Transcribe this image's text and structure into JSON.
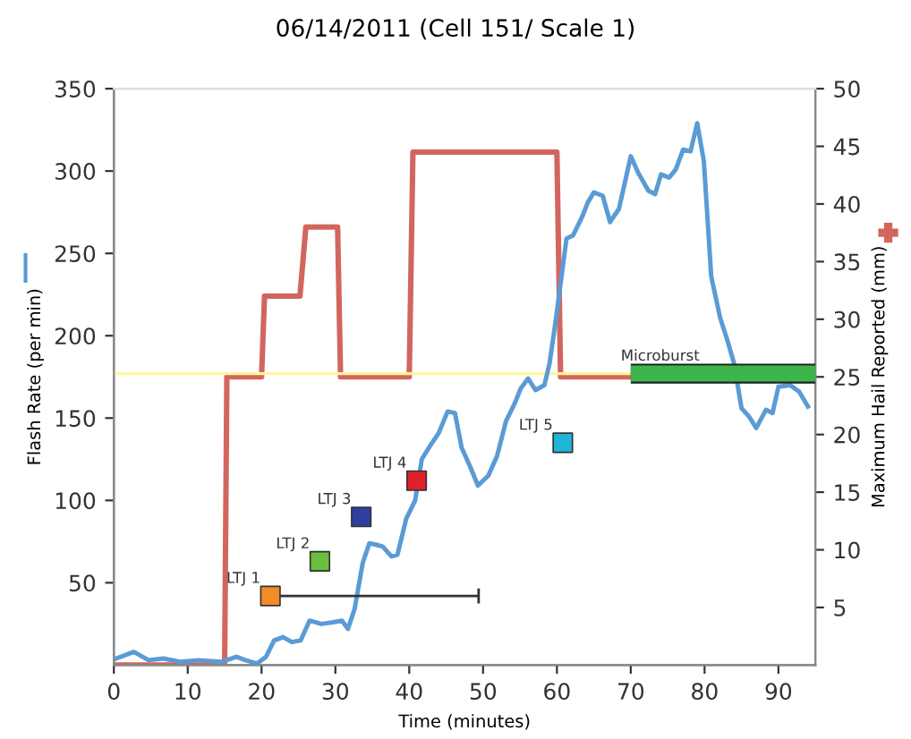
{
  "chart_data": {
    "type": "line",
    "title": "06/14/2011 (Cell 151/ Scale 1)",
    "xlabel": "Time (minutes)",
    "ylabel": "Flash Rate (per min)",
    "y2label": "Maximum Hail Reported (mm)",
    "xlim": [
      0,
      95
    ],
    "xticks": [
      0,
      10,
      20,
      30,
      40,
      50,
      60,
      70,
      80,
      90
    ],
    "ylim": [
      0,
      350
    ],
    "yticks": [
      50,
      100,
      150,
      200,
      250,
      300,
      350
    ],
    "y2lim": [
      0,
      50
    ],
    "y2ticks": [
      5,
      10,
      15,
      20,
      25,
      30,
      35,
      40,
      45,
      50
    ],
    "grid": false,
    "legend": false,
    "ref_lines": [
      {
        "axis": "y",
        "value": 177,
        "label": null,
        "color": "#fff59d"
      }
    ],
    "series": [
      {
        "color": "#5b9bd5",
        "x": [
          0.3,
          2.7,
          4.7,
          6.7,
          9,
          11.4,
          14.6,
          16.6,
          17.8,
          19.4,
          20.6,
          21.7,
          22.9,
          24.1,
          25.3,
          26.5,
          28.1,
          29.7,
          30.9,
          31.7,
          32.6,
          33.7,
          34.6,
          35.6,
          36.4,
          37.6,
          38.4,
          39.6,
          40.8,
          41.7,
          42.8,
          44,
          45.2,
          46.2,
          47.1,
          48.3,
          49.3,
          50.7,
          51.9,
          53.1,
          54.3,
          55.1,
          56.1,
          57.1,
          58.3,
          59,
          59.8,
          61.3,
          62.2,
          63.4,
          64.2,
          65,
          66.2,
          67.2,
          68.4,
          70,
          71,
          72.4,
          73.3,
          74.1,
          75.2,
          76.1,
          77.1,
          78.1,
          79,
          79.9,
          80.9,
          82.1,
          83.1,
          84,
          85,
          86,
          87,
          88.3,
          89.2,
          90,
          91.6,
          92.8,
          94
        ],
        "values": [
          4,
          8,
          3,
          4,
          2,
          3,
          2,
          5,
          3,
          1,
          5,
          15,
          17,
          14,
          15,
          27,
          25,
          26,
          27,
          22,
          34,
          62,
          74,
          73,
          72,
          66,
          67,
          89,
          100,
          125,
          133,
          141,
          154,
          153,
          132,
          120,
          109,
          115,
          127,
          148,
          159,
          168,
          174,
          167,
          170,
          183,
          208,
          259,
          261,
          272,
          281,
          287,
          285,
          269,
          277,
          309,
          299,
          288,
          286,
          298,
          296,
          301,
          313,
          312,
          329,
          306,
          236,
          211,
          197,
          183,
          156,
          151,
          144,
          155,
          153,
          169,
          170,
          166,
          157
        ]
      },
      {
        "axis": "y2",
        "color": "#d2665e",
        "x": [
          0,
          15,
          15.3,
          20,
          20.4,
          25.2,
          26,
          30.3,
          30.7,
          40,
          40.5,
          60,
          60.5,
          70
        ],
        "values": [
          0,
          0,
          25,
          25,
          32,
          32,
          38,
          38,
          25,
          25,
          44.5,
          44.5,
          25,
          25
        ]
      },
      {
        "color": "#3cb54a",
        "x": [
          70,
          95
        ],
        "values": [
          177,
          177
        ]
      },
      {
        "type": "scatter",
        "marker": "square",
        "x": [
          21.2,
          27.9,
          33.5,
          41,
          60.8
        ],
        "values": [
          42,
          63,
          90,
          112,
          135
        ],
        "colors": [
          "#f28c28",
          "#6abf40",
          "#2e3f9e",
          "#e0202a",
          "#1fb5d6"
        ],
        "xerrors": [
          [
            21.2,
            49.4
          ],
          null,
          null,
          null,
          null
        ]
      }
    ],
    "annotations": [
      {
        "text": "LTJ 1",
        "x": 21.2,
        "y": 42
      },
      {
        "text": "LTJ 2",
        "x": 27.9,
        "y": 63
      },
      {
        "text": "LTJ 3",
        "x": 33.5,
        "y": 90
      },
      {
        "text": "LTJ 4",
        "x": 41,
        "y": 112
      },
      {
        "text": "LTJ 5",
        "x": 60.8,
        "y": 135
      },
      {
        "text": "Microburst",
        "x": 70,
        "y": 177
      }
    ]
  }
}
